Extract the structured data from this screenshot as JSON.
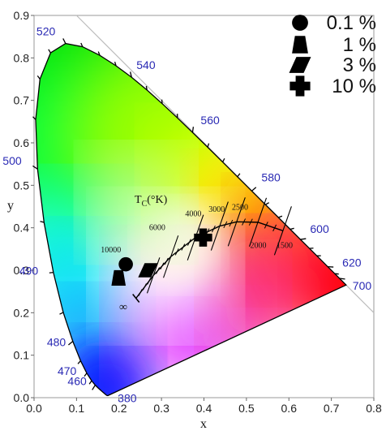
{
  "chart_data": {
    "type": "scatter",
    "xlabel": "x",
    "ylabel": "y",
    "xlim": [
      0.0,
      0.8
    ],
    "ylim": [
      0.0,
      0.9
    ],
    "x_ticks": [
      "0.0",
      "0.1",
      "0.2",
      "0.3",
      "0.4",
      "0.5",
      "0.6",
      "0.7",
      "0.8"
    ],
    "y_ticks": [
      "0.0",
      "0.1",
      "0.2",
      "0.3",
      "0.4",
      "0.5",
      "0.6",
      "0.7",
      "0.8",
      "0.9"
    ],
    "grid": false,
    "legend_position": "top-right",
    "series": [
      {
        "name": "0.1 %",
        "marker": "circle",
        "x": [
          0.216
        ],
        "y": [
          0.314
        ]
      },
      {
        "name": "1 %",
        "marker": "trapezoid",
        "x": [
          0.199
        ],
        "y": [
          0.282
        ]
      },
      {
        "name": "3 %",
        "marker": "parallelogram",
        "x": [
          0.268
        ],
        "y": [
          0.3
        ]
      },
      {
        "name": "10 %",
        "marker": "cross",
        "x": [
          0.398
        ],
        "y": [
          0.377
        ]
      }
    ],
    "spectral_locus_labels": [
      {
        "nm": "380",
        "x": 0.1741,
        "y": 0.005
      },
      {
        "nm": "460",
        "x": 0.144,
        "y": 0.0297
      },
      {
        "nm": "470",
        "x": 0.1241,
        "y": 0.0578
      },
      {
        "nm": "480",
        "x": 0.0913,
        "y": 0.1327
      },
      {
        "nm": "490",
        "x": 0.0454,
        "y": 0.295
      },
      {
        "nm": "500",
        "x": 0.0082,
        "y": 0.5384
      },
      {
        "nm": "520",
        "x": 0.0743,
        "y": 0.8338
      },
      {
        "nm": "540",
        "x": 0.2296,
        "y": 0.7543
      },
      {
        "nm": "560",
        "x": 0.3731,
        "y": 0.6245
      },
      {
        "nm": "580",
        "x": 0.5125,
        "y": 0.4866
      },
      {
        "nm": "600",
        "x": 0.627,
        "y": 0.3725
      },
      {
        "nm": "620",
        "x": 0.6915,
        "y": 0.3083
      },
      {
        "nm": "700",
        "x": 0.7347,
        "y": 0.2653
      }
    ],
    "planckian_locus": {
      "label": "T",
      "label_subscript": "C",
      "label_unit": "(°K)",
      "temperature_labels": [
        "10000",
        "6000",
        "4000",
        "3000",
        "2500",
        "2000",
        "1500"
      ],
      "infinity_label": "∞",
      "points": [
        {
          "T": "∞",
          "x": 0.24,
          "y": 0.234
        },
        {
          "T": "10000",
          "x": 0.281,
          "y": 0.288
        },
        {
          "T": "6000",
          "x": 0.322,
          "y": 0.332
        },
        {
          "T": "4000",
          "x": 0.38,
          "y": 0.377
        },
        {
          "T": "3000",
          "x": 0.437,
          "y": 0.404
        },
        {
          "T": "2500",
          "x": 0.477,
          "y": 0.414
        },
        {
          "T": "2000",
          "x": 0.527,
          "y": 0.413
        },
        {
          "T": "1500",
          "x": 0.586,
          "y": 0.393
        }
      ]
    }
  }
}
